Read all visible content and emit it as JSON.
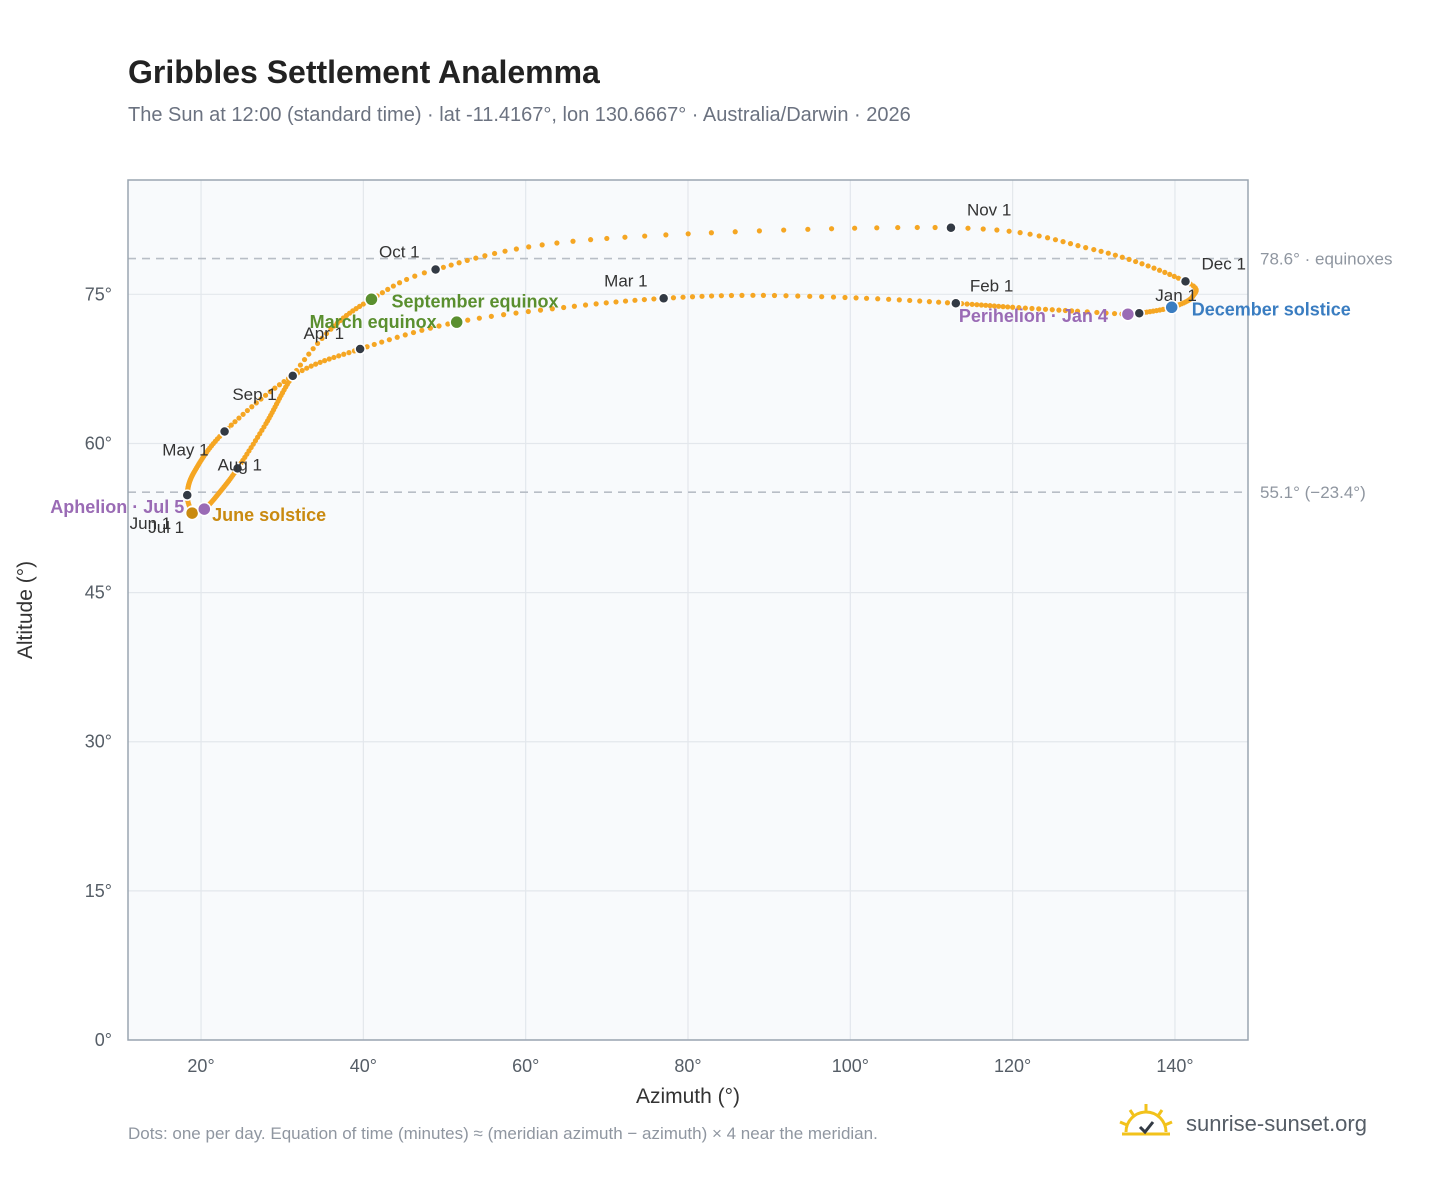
{
  "title": "Gribbles Settlement Analemma",
  "subtitle": "The Sun at 12:00 (standard time) · lat -11.4167°, lon 130.6667° · Australia/Darwin · 2026",
  "footnote": "Dots: one per day. Equation of time (minutes) ≈ (meridian azimuth − azimuth) × 4 near the meridian.",
  "brand": {
    "text": "sunrise-sunset.org",
    "icon": "sun-logo-icon"
  },
  "colors": {
    "analemma": "#f5a623",
    "month_marker": "#333a44",
    "equinox": "#5a8f2f",
    "june_solstice": "#c98a10",
    "december_solstice": "#3a7dc1",
    "apsis": "#9a6bb5",
    "reference_line": "#b8bec6",
    "plot_background": "#f8fafc",
    "grid": "#e3e7ec",
    "frame": "#9aa5b1"
  },
  "chart_data": {
    "type": "scatter",
    "title": "Gribbles Settlement Analemma",
    "subtitle": "The Sun at 12:00 (standard time) · lat -11.4167°, lon 130.6667° · Australia/Darwin · 2026",
    "xlabel": "Azimuth (°)",
    "ylabel": "Altitude (°)",
    "xlim": [
      11,
      149
    ],
    "ylim": [
      0,
      86.5
    ],
    "xticks": [
      20,
      40,
      60,
      80,
      100,
      120,
      140
    ],
    "yticks": [
      0,
      15,
      30,
      45,
      60,
      75
    ],
    "grid": true,
    "series": [
      {
        "points": [
          {
            "date": "2026-01-01",
            "az": 135.6,
            "alt": 73.1
          },
          {
            "date": "2026-01-04",
            "az": 134.2,
            "alt": 73.0
          },
          {
            "date": "2026-01-10",
            "az": 128.0,
            "alt": 73.3
          },
          {
            "date": "2026-01-20",
            "az": 120.0,
            "alt": 73.7
          },
          {
            "date": "2026-02-01",
            "az": 113.0,
            "alt": 74.1
          },
          {
            "date": "2026-02-10",
            "az": 102.0,
            "alt": 74.6
          },
          {
            "date": "2026-02-20",
            "az": 88.0,
            "alt": 74.9
          },
          {
            "date": "2026-03-01",
            "az": 77.0,
            "alt": 74.6
          },
          {
            "date": "2026-03-10",
            "az": 66.0,
            "alt": 73.8
          },
          {
            "date": "2026-03-20",
            "az": 51.5,
            "alt": 72.2
          },
          {
            "date": "2026-04-01",
            "az": 39.6,
            "alt": 69.5
          },
          {
            "date": "2026-04-15",
            "az": 31.3,
            "alt": 66.8
          },
          {
            "date": "2026-05-01",
            "az": 22.9,
            "alt": 61.2
          },
          {
            "date": "2026-05-20",
            "az": 19.2,
            "alt": 57.2
          },
          {
            "date": "2026-06-10",
            "az": 18.3,
            "alt": 54.8
          },
          {
            "date": "2026-06-21",
            "az": 18.9,
            "alt": 53.0
          },
          {
            "date": "2026-07-01",
            "az": 18.9,
            "alt": 53.2
          },
          {
            "date": "2026-07-05",
            "az": 20.4,
            "alt": 53.4
          },
          {
            "date": "2026-07-20",
            "az": 22.5,
            "alt": 55.3
          },
          {
            "date": "2026-08-01",
            "az": 24.5,
            "alt": 57.5
          },
          {
            "date": "2026-08-15",
            "az": 28.0,
            "alt": 62.0
          },
          {
            "date": "2026-09-01",
            "az": 31.3,
            "alt": 66.8
          },
          {
            "date": "2026-09-10",
            "az": 36.0,
            "alt": 71.5
          },
          {
            "date": "2026-09-22",
            "az": 41.0,
            "alt": 74.5
          },
          {
            "date": "2026-10-01",
            "az": 48.9,
            "alt": 77.5
          },
          {
            "date": "2026-10-15",
            "az": 68.0,
            "alt": 80.5
          },
          {
            "date": "2026-11-01",
            "az": 112.4,
            "alt": 81.7
          },
          {
            "date": "2026-11-15",
            "az": 130.0,
            "alt": 79.5
          },
          {
            "date": "2026-12-01",
            "az": 141.3,
            "alt": 76.3
          },
          {
            "date": "2026-12-10",
            "az": 142.2,
            "alt": 74.8
          },
          {
            "date": "2026-12-21",
            "az": 139.6,
            "alt": 73.7
          },
          {
            "date": "2026-12-31",
            "az": 135.6,
            "alt": 73.1
          }
        ]
      }
    ],
    "month_markers": [
      {
        "label": "Jan 1",
        "az": 135.6,
        "alt": 73.1
      },
      {
        "label": "Feb 1",
        "az": 113.0,
        "alt": 74.1
      },
      {
        "label": "Mar 1",
        "az": 77.0,
        "alt": 74.6
      },
      {
        "label": "Apr 1",
        "az": 39.6,
        "alt": 69.5
      },
      {
        "label": "May 1",
        "az": 22.9,
        "alt": 61.2
      },
      {
        "label": "Jun 1",
        "az": 18.3,
        "alt": 54.8
      },
      {
        "label": "Jul 1",
        "az": 18.9,
        "alt": 53.2
      },
      {
        "label": "Aug 1",
        "az": 24.5,
        "alt": 57.5
      },
      {
        "label": "Sep 1",
        "az": 31.3,
        "alt": 66.8
      },
      {
        "label": "Oct 1",
        "az": 48.9,
        "alt": 77.5
      },
      {
        "label": "Nov 1",
        "az": 112.4,
        "alt": 81.7
      },
      {
        "label": "Dec 1",
        "az": 141.3,
        "alt": 76.3
      }
    ],
    "events": [
      {
        "label": "March equinox",
        "az": 51.5,
        "alt": 72.2,
        "color": "#5a8f2f"
      },
      {
        "label": "September equinox",
        "az": 41.0,
        "alt": 74.5,
        "color": "#5a8f2f"
      },
      {
        "label": "June solstice",
        "az": 18.9,
        "alt": 53.0,
        "color": "#c98a10"
      },
      {
        "label": "December solstice",
        "az": 139.6,
        "alt": 73.7,
        "color": "#3a7dc1"
      },
      {
        "label": "Perihelion · Jan 4",
        "az": 134.2,
        "alt": 73.0,
        "color": "#9a6bb5"
      },
      {
        "label": "Aphelion · Jul 5",
        "az": 20.4,
        "alt": 53.4,
        "color": "#9a6bb5"
      }
    ],
    "reference_lines": [
      {
        "alt": 78.6,
        "label": "78.6° · equinoxes"
      },
      {
        "alt": 55.1,
        "label": "55.1° (−23.4°)"
      }
    ]
  }
}
